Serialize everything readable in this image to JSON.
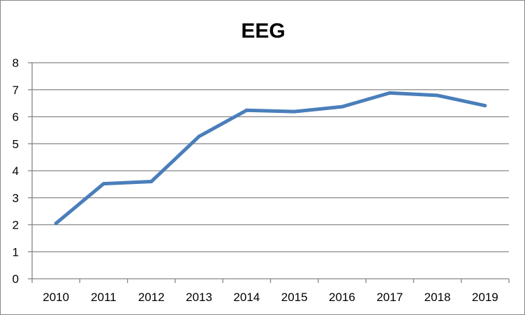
{
  "chart_data": {
    "type": "line",
    "title": "EEG",
    "xlabel": "",
    "ylabel": "",
    "categories": [
      "2010",
      "2011",
      "2012",
      "2013",
      "2014",
      "2015",
      "2016",
      "2017",
      "2018",
      "2019"
    ],
    "series": [
      {
        "values": [
          2.05,
          3.52,
          3.6,
          5.27,
          6.24,
          6.19,
          6.37,
          6.88,
          6.79,
          6.41
        ]
      }
    ],
    "ylim": [
      0,
      8
    ],
    "yticks": [
      "0",
      "1",
      "2",
      "3",
      "4",
      "5",
      "6",
      "7",
      "8"
    ],
    "grid": true,
    "legend": "none",
    "colors": {
      "line": "#4a7ebb",
      "grid": "#868686",
      "axis": "#868686"
    }
  }
}
